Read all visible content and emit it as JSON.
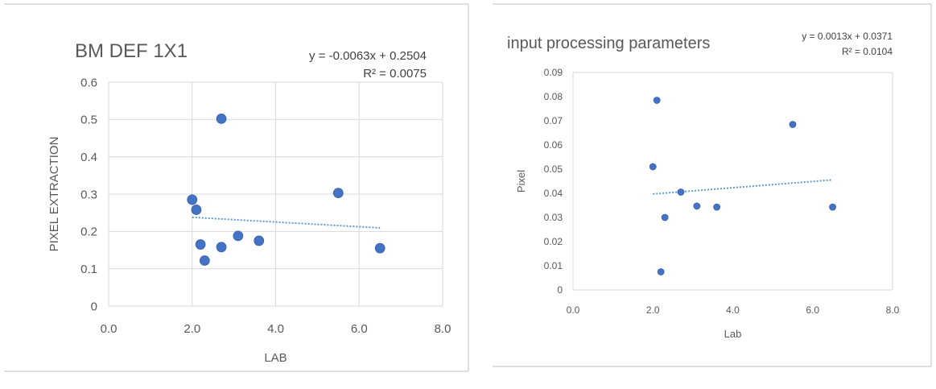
{
  "chart_data": [
    {
      "type": "scatter",
      "title": "BM DEF 1X1",
      "xlabel": "LAB",
      "ylabel": "PIXEL EXTRACTION",
      "xlim": [
        0,
        8
      ],
      "ylim": [
        0,
        0.6
      ],
      "x_ticks": [
        "0.0",
        "2.0",
        "4.0",
        "6.0",
        "8.0"
      ],
      "y_ticks": [
        "0",
        "0.1",
        "0.2",
        "0.3",
        "0.4",
        "0.5",
        "0.6"
      ],
      "grid": true,
      "marker_color": "#4472c4",
      "trendline": {
        "type": "linear",
        "slope": -0.0063,
        "intercept": 0.2504,
        "x_range": [
          2.0,
          6.5
        ],
        "style": "dotted",
        "color": "#5b9bd5",
        "equation": "y = -0.0063x + 0.2504",
        "r_squared": "R² = 0.0075"
      },
      "series": [
        {
          "points": [
            {
              "x": 2.0,
              "y": 0.285
            },
            {
              "x": 2.1,
              "y": 0.258
            },
            {
              "x": 2.2,
              "y": 0.165
            },
            {
              "x": 2.3,
              "y": 0.122
            },
            {
              "x": 2.7,
              "y": 0.502
            },
            {
              "x": 2.7,
              "y": 0.158
            },
            {
              "x": 3.1,
              "y": 0.188
            },
            {
              "x": 3.6,
              "y": 0.175
            },
            {
              "x": 5.5,
              "y": 0.303
            },
            {
              "x": 6.5,
              "y": 0.155
            }
          ]
        }
      ]
    },
    {
      "type": "scatter",
      "title": "input processing parameters",
      "xlabel": "Lab",
      "ylabel": "Pixel",
      "xlim": [
        0,
        8
      ],
      "ylim": [
        0,
        0.09
      ],
      "x_ticks": [
        "0.0",
        "2.0",
        "4.0",
        "6.0",
        "8.0"
      ],
      "y_ticks": [
        "0",
        "0.01",
        "0.02",
        "0.03",
        "0.04",
        "0.05",
        "0.06",
        "0.07",
        "0.08",
        "0.09"
      ],
      "grid": false,
      "marker_color": "#4472c4",
      "trendline": {
        "type": "linear",
        "slope": 0.0013,
        "intercept": 0.0371,
        "x_range": [
          2.0,
          6.5
        ],
        "style": "dotted",
        "color": "#5b9bd5",
        "equation": "y = 0.0013x + 0.0371",
        "r_squared": "R² = 0.0104"
      },
      "series": [
        {
          "points": [
            {
              "x": 2.0,
              "y": 0.051
            },
            {
              "x": 2.1,
              "y": 0.0785
            },
            {
              "x": 2.2,
              "y": 0.0075
            },
            {
              "x": 2.3,
              "y": 0.03
            },
            {
              "x": 2.7,
              "y": 0.0405
            },
            {
              "x": 3.1,
              "y": 0.0347
            },
            {
              "x": 3.6,
              "y": 0.0343
            },
            {
              "x": 5.5,
              "y": 0.0685
            },
            {
              "x": 6.5,
              "y": 0.0343
            }
          ]
        }
      ]
    }
  ]
}
